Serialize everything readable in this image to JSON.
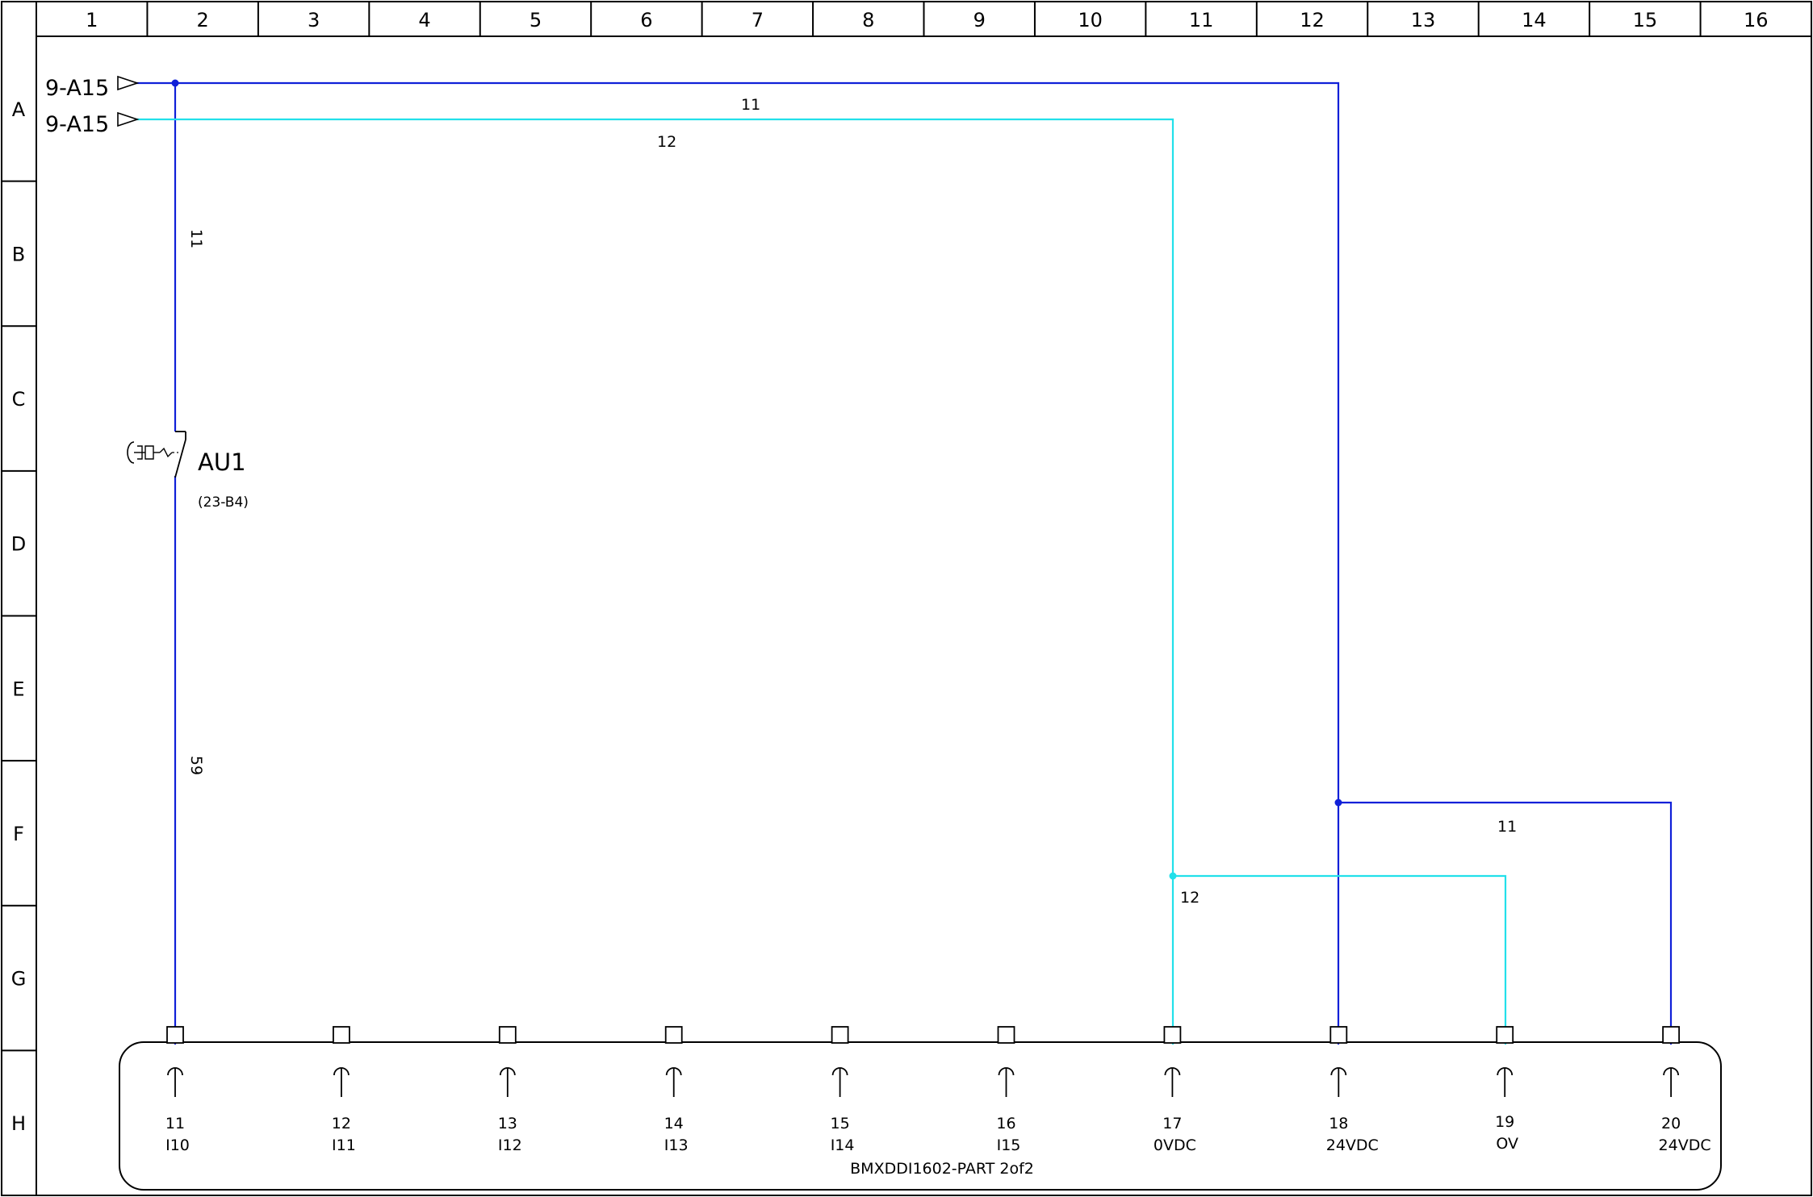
{
  "columns": [
    "1",
    "2",
    "3",
    "4",
    "5",
    "6",
    "7",
    "8",
    "9",
    "10",
    "11",
    "12",
    "13",
    "14",
    "15",
    "16"
  ],
  "rows": [
    "A",
    "B",
    "C",
    "D",
    "E",
    "F",
    "G",
    "H"
  ],
  "colors": {
    "wire_11": "#1020d8",
    "wire_12": "#22e0ea",
    "frame": "#000000"
  },
  "references": [
    {
      "label": "9-A15",
      "wire": "11"
    },
    {
      "label": "9-A15",
      "wire": "12"
    }
  ],
  "wire_labels": {
    "top_11": "11",
    "top_12": "12",
    "vertical_11": "11",
    "vertical_59": "59",
    "right_11": "11",
    "right_12": "12"
  },
  "device": {
    "tag": "AU1",
    "ref": "(23-B4)"
  },
  "module": {
    "name": "BMXDDI1602-PART 2of2",
    "terminals": [
      {
        "number": "11",
        "label": "I10"
      },
      {
        "number": "12",
        "label": "I11"
      },
      {
        "number": "13",
        "label": "I12"
      },
      {
        "number": "14",
        "label": "I13"
      },
      {
        "number": "15",
        "label": "I14"
      },
      {
        "number": "16",
        "label": "I15"
      },
      {
        "number": "17",
        "label": "0VDC"
      },
      {
        "number": "18",
        "label": "24VDC"
      },
      {
        "number": "19",
        "label": "OV"
      },
      {
        "number": "20",
        "label": "24VDC"
      }
    ]
  }
}
